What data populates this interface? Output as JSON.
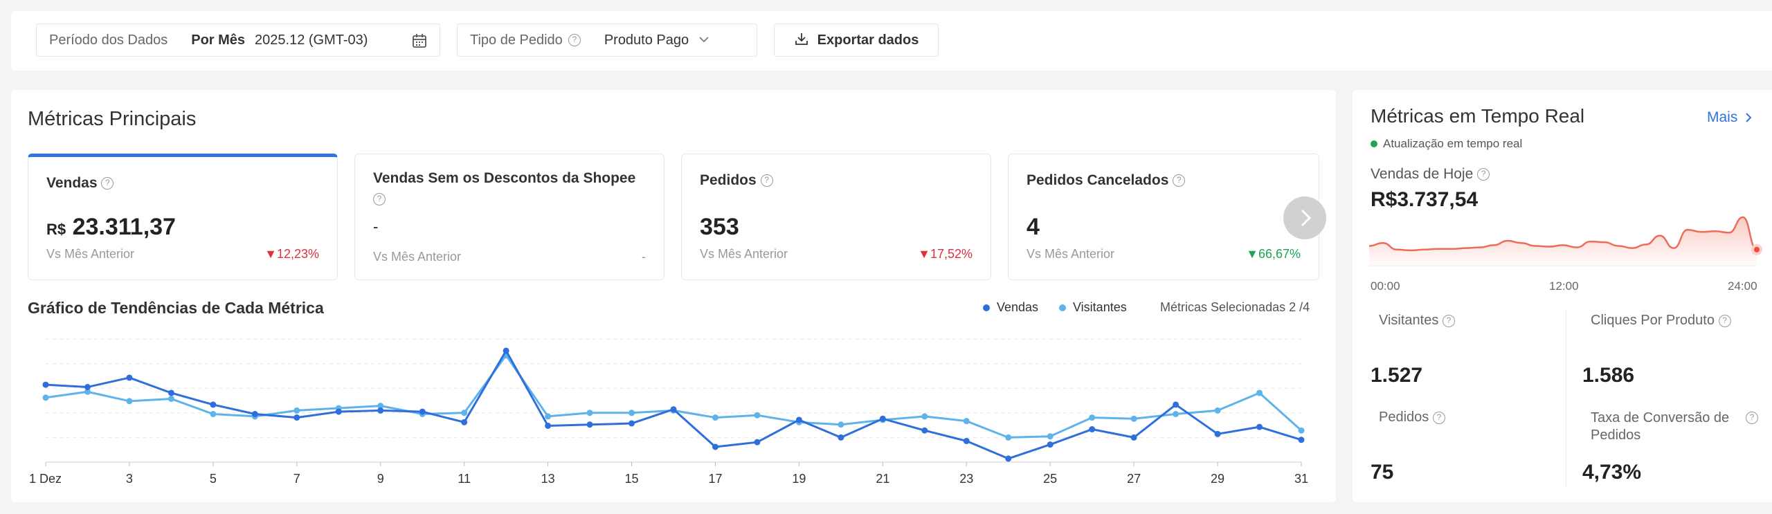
{
  "filters": {
    "period_label": "Período dos Dados",
    "period_mode": "Por Mês",
    "period_value": "2025.12 (GMT-03)",
    "order_type_label": "Tipo de Pedido",
    "order_type_value": "Produto Pago",
    "export_label": "Exportar dados"
  },
  "main_metrics": {
    "title": "Métricas Principais",
    "cards": [
      {
        "title": "Vendas",
        "currency": "R$",
        "value": "23.311,37",
        "compare": "Vs Mês Anterior",
        "change": "12,23%",
        "direction": "down"
      },
      {
        "title": "Vendas Sem os Descontos da Shopee",
        "value": "-",
        "compare": "Vs Mês Anterior",
        "change": "-"
      },
      {
        "title": "Pedidos",
        "value": "353",
        "compare": "Vs Mês Anterior",
        "change": "17,52%",
        "direction": "down"
      },
      {
        "title": "Pedidos Cancelados",
        "value": "4",
        "compare": "Vs Mês Anterior",
        "change": "66,67%",
        "direction": "up"
      }
    ]
  },
  "trend": {
    "title": "Gráfico de Tendências de Cada Métrica",
    "selected": "Métricas Selecionadas 2 /4"
  },
  "chart_data": {
    "type": "line",
    "x": [
      1,
      2,
      3,
      4,
      5,
      6,
      7,
      8,
      9,
      10,
      11,
      12,
      13,
      14,
      15,
      16,
      17,
      18,
      19,
      20,
      21,
      22,
      23,
      24,
      25,
      26,
      27,
      28,
      29,
      30,
      31
    ],
    "tick_labels": [
      "1 Dez",
      "3",
      "5",
      "7",
      "9",
      "11",
      "13",
      "15",
      "17",
      "19",
      "21",
      "23",
      "25",
      "27",
      "29",
      "31"
    ],
    "tick_values": [
      1,
      3,
      5,
      7,
      9,
      11,
      13,
      15,
      17,
      19,
      21,
      23,
      25,
      27,
      29,
      31
    ],
    "series": [
      {
        "name": "Vendas",
        "color": "#2f6fdc",
        "values": [
          66,
          64,
          72,
          59,
          49,
          41,
          38,
          43,
          44,
          43,
          34,
          95,
          31,
          32,
          33,
          45,
          13,
          17,
          36,
          21,
          37,
          27,
          18,
          3,
          15,
          28,
          21,
          49,
          24,
          30,
          19
        ]
      },
      {
        "name": "Visitantes",
        "color": "#5db3ea",
        "values": [
          55,
          60,
          52,
          54,
          41,
          39,
          44,
          46,
          48,
          41,
          42,
          91,
          39,
          42,
          42,
          44,
          38,
          40,
          34,
          32,
          36,
          39,
          35,
          21,
          22,
          38,
          37,
          41,
          44,
          59,
          27
        ]
      }
    ],
    "ylim": [
      0,
      105
    ],
    "grid": true,
    "legend": "top-right"
  },
  "realtime": {
    "title": "Métricas em Tempo Real",
    "more_label": "Mais",
    "status": "Atualização em tempo real",
    "today_label": "Vendas de Hoje",
    "today_value": "R$3.737,54",
    "spark_labels": [
      "00:00",
      "12:00",
      "24:00"
    ],
    "spark_values": [
      8,
      12,
      3,
      2,
      3,
      4,
      4,
      5,
      6,
      9,
      15,
      12,
      8,
      7,
      9,
      6,
      14,
      13,
      8,
      5,
      10,
      22,
      5,
      30,
      27,
      28,
      26,
      47,
      3
    ],
    "stats": [
      {
        "label": "Visitantes",
        "value": "1.527"
      },
      {
        "label": "Cliques Por Produto",
        "value": "1.586"
      },
      {
        "label": "Pedidos",
        "value": "75"
      },
      {
        "label": "Taxa de Conversão de Pedidos",
        "value": "4,73%"
      }
    ]
  }
}
